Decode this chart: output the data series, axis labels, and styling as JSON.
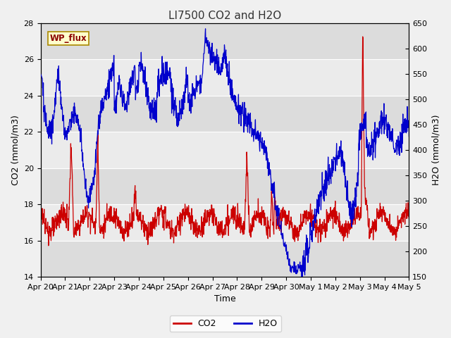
{
  "title": "LI7500 CO2 and H2O",
  "xlabel": "Time",
  "ylabel_left": "CO2 (mmol/m3)",
  "ylabel_right": "H2O (mmol/m3)",
  "ylim_left": [
    14,
    28
  ],
  "ylim_right": [
    150,
    650
  ],
  "yticks_left": [
    14,
    16,
    18,
    20,
    22,
    24,
    26,
    28
  ],
  "yticks_right": [
    150,
    200,
    250,
    300,
    350,
    400,
    450,
    500,
    550,
    600,
    650
  ],
  "xtick_labels": [
    "Apr 20",
    "Apr 21",
    "Apr 22",
    "Apr 23",
    "Apr 24",
    "Apr 25",
    "Apr 26",
    "Apr 27",
    "Apr 28",
    "Apr 29",
    "Apr 30",
    "May 1",
    "May 2",
    "May 3",
    "May 4",
    "May 5"
  ],
  "annotation_text": "WP_flux",
  "co2_color": "#cc0000",
  "h2o_color": "#0000cc",
  "bg_color": "#f0f0f0",
  "plot_bg_dark": "#dcdcdc",
  "plot_bg_light": "#ebebeb",
  "grid_color": "#ffffff",
  "title_fontsize": 11,
  "axis_fontsize": 9,
  "tick_fontsize": 8
}
